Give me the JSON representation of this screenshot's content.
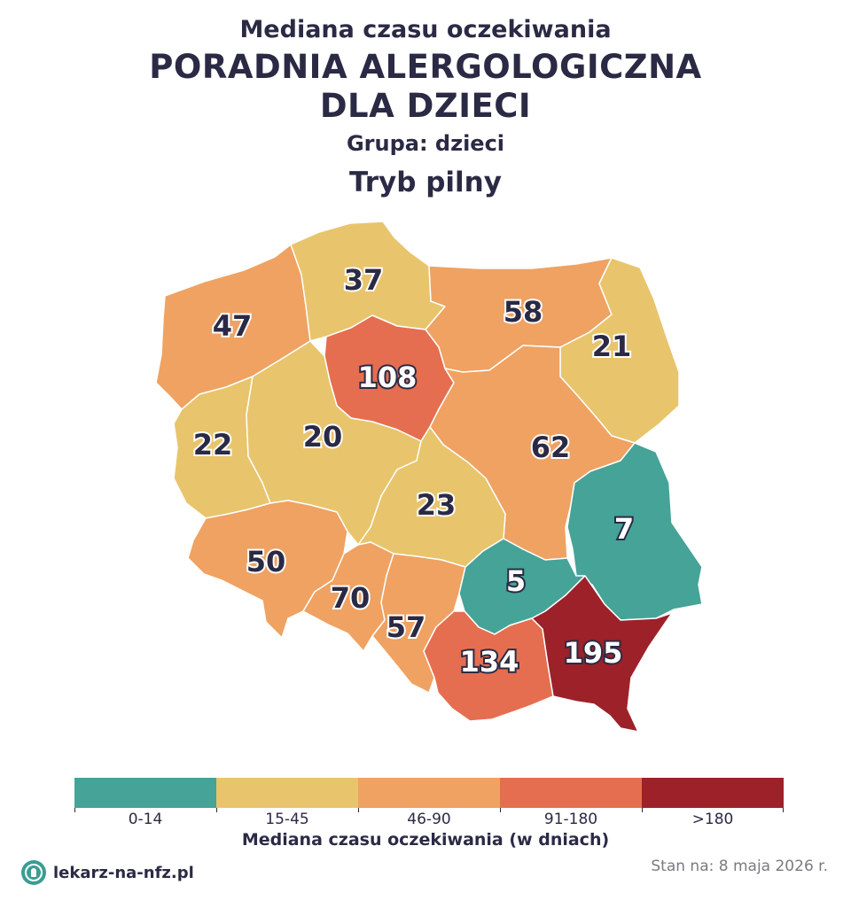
{
  "header": {
    "subtitle": "Mediana czasu oczekiwania",
    "title_line1": "PORADNIA ALERGOLOGICZNA",
    "title_line2": "DLA DZIECI",
    "group": "Grupa: dzieci",
    "mode": "Tryb pilny"
  },
  "map_data": {
    "type": "choropleth",
    "unit": "dni",
    "regions": [
      {
        "id": "pomorskie",
        "value": "37",
        "color": "#e8c46c",
        "label_style": "dark"
      },
      {
        "id": "zachodniopomorskie",
        "value": "47",
        "color": "#efa262",
        "label_style": "dark"
      },
      {
        "id": "warminsko-mazurskie",
        "value": "58",
        "color": "#efa262",
        "label_style": "dark"
      },
      {
        "id": "podlaskie",
        "value": "21",
        "color": "#e8c46c",
        "label_style": "dark"
      },
      {
        "id": "kujawsko-pomorskie",
        "value": "108",
        "color": "#e56e50",
        "label_style": "light"
      },
      {
        "id": "lubuskie",
        "value": "22",
        "color": "#e8c46c",
        "label_style": "dark"
      },
      {
        "id": "wielkopolskie",
        "value": "20",
        "color": "#e8c46c",
        "label_style": "dark"
      },
      {
        "id": "mazowieckie",
        "value": "62",
        "color": "#efa262",
        "label_style": "dark"
      },
      {
        "id": "lodzkie",
        "value": "23",
        "color": "#e8c46c",
        "label_style": "dark"
      },
      {
        "id": "lubelskie",
        "value": "7",
        "color": "#45a397",
        "label_style": "light"
      },
      {
        "id": "dolnoslaskie",
        "value": "50",
        "color": "#efa262",
        "label_style": "dark"
      },
      {
        "id": "opolskie",
        "value": "70",
        "color": "#efa262",
        "label_style": "dark"
      },
      {
        "id": "slaskie",
        "value": "57",
        "color": "#efa262",
        "label_style": "dark"
      },
      {
        "id": "swietokrzyskie",
        "value": "5",
        "color": "#45a397",
        "label_style": "light"
      },
      {
        "id": "malopolskie",
        "value": "134",
        "color": "#e56e50",
        "label_style": "light"
      },
      {
        "id": "podkarpackie",
        "value": "195",
        "color": "#9d2128",
        "label_style": "light"
      }
    ]
  },
  "legend": {
    "title": "Mediana czasu oczekiwania (w dniach)",
    "items": [
      {
        "label": "0-14",
        "color": "#45a397"
      },
      {
        "label": "15-45",
        "color": "#e8c46c"
      },
      {
        "label": "46-90",
        "color": "#efa262"
      },
      {
        "label": "91-180",
        "color": "#e56e50"
      },
      {
        "label": ">180",
        "color": "#9d2128"
      }
    ]
  },
  "footer": {
    "brand": "lekarz-na-nfz.pl",
    "brand_icon": "stethoscope-doctor-icon",
    "status": "Stan na: 8 maja 2026 r."
  }
}
